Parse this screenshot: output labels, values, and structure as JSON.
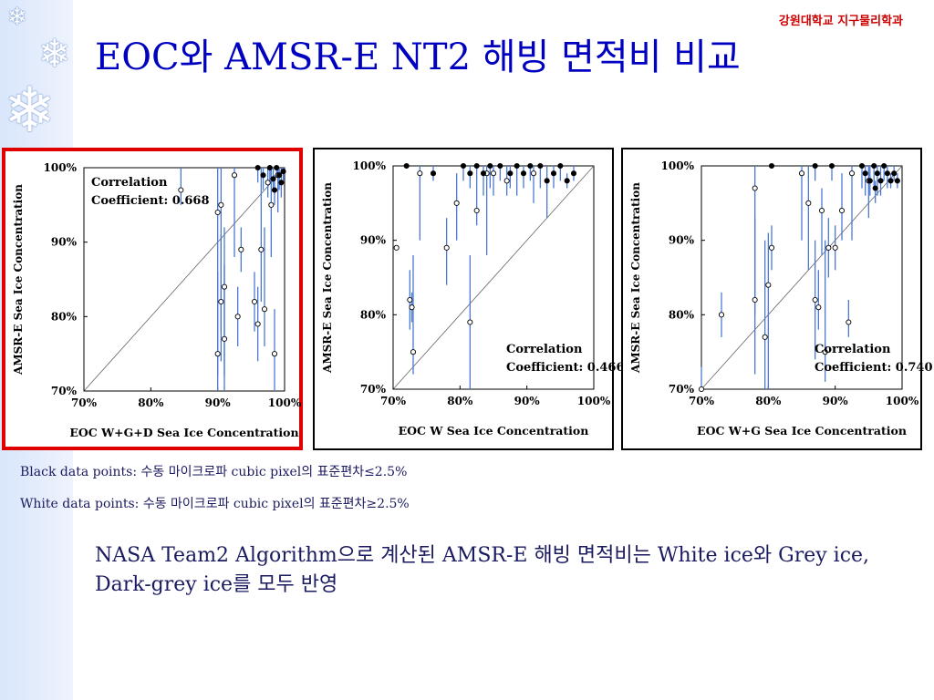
{
  "header": {
    "department": "강원대학교 지구물리학과",
    "title": "EOC와 AMSR-E NT2 해빙 면적비 비교"
  },
  "decor": {
    "icon": "snowflake-icon"
  },
  "legend": {
    "black": "Black data points: 수동 마이크로파 cubic pixel의 표준편차≤2.5%",
    "white": "White data points: 수동 마이크로파 cubic pixel의 표준편차≥2.5%"
  },
  "body_text": "NASA Team2 Algorithm으로 계산된 AMSR-E 해빙 면적비는 White ice와 Grey ice, Dark-grey ice를 모두 반영",
  "colors": {
    "title": "#0000c0",
    "department": "#cc0000",
    "highlight": "#e00000",
    "error_bar": "#4a78d4",
    "sidebar": "#dce8fb"
  },
  "chart_data": [
    {
      "type": "scatter",
      "xlabel": "EOC W+G+D Sea Ice Concentration",
      "ylabel": "AMSR-E Sea Ice Concentration",
      "xlim": [
        70,
        100
      ],
      "ylim": [
        70,
        100
      ],
      "xticks": [
        "70%",
        "80%",
        "90%",
        "100%"
      ],
      "yticks": [
        "70%",
        "80%",
        "90%",
        "100%"
      ],
      "annotation": [
        "Correlation",
        "Coefficient: 0.668"
      ],
      "annotation_position": "top-left",
      "highlighted": true,
      "points": [
        {
          "x": 84.5,
          "y": 97,
          "lo": 95,
          "hi": 100,
          "black": false
        },
        {
          "x": 90,
          "y": 94,
          "lo": 72,
          "hi": 100,
          "black": false
        },
        {
          "x": 90.5,
          "y": 95,
          "lo": 78,
          "hi": 100,
          "black": false
        },
        {
          "x": 90.5,
          "y": 82,
          "lo": 74,
          "hi": 91,
          "black": false
        },
        {
          "x": 91,
          "y": 84,
          "lo": 70,
          "hi": 92,
          "black": false
        },
        {
          "x": 90,
          "y": 75,
          "lo": 70,
          "hi": 86,
          "black": false
        },
        {
          "x": 91,
          "y": 77,
          "lo": 72,
          "hi": 87,
          "black": false
        },
        {
          "x": 92.5,
          "y": 99,
          "lo": 88,
          "hi": 100,
          "black": false
        },
        {
          "x": 93,
          "y": 80,
          "lo": 76,
          "hi": 84,
          "black": false
        },
        {
          "x": 93.5,
          "y": 89,
          "lo": 86,
          "hi": 92,
          "black": false
        },
        {
          "x": 95.5,
          "y": 82,
          "lo": 78,
          "hi": 86,
          "black": false
        },
        {
          "x": 96,
          "y": 79,
          "lo": 74,
          "hi": 84,
          "black": false
        },
        {
          "x": 96.5,
          "y": 89,
          "lo": 82,
          "hi": 100,
          "black": false
        },
        {
          "x": 97,
          "y": 81,
          "lo": 76,
          "hi": 92,
          "black": false
        },
        {
          "x": 98,
          "y": 95,
          "lo": 88,
          "hi": 100,
          "black": false
        },
        {
          "x": 98.5,
          "y": 75,
          "lo": 70,
          "hi": 81,
          "black": false
        },
        {
          "x": 99,
          "y": 99,
          "lo": 94,
          "hi": 100,
          "black": false
        },
        {
          "x": 97.5,
          "y": 98,
          "lo": 96,
          "hi": 100,
          "black": false
        },
        {
          "x": 96,
          "y": 100,
          "lo": 98,
          "hi": 100,
          "black": true
        },
        {
          "x": 96.8,
          "y": 99,
          "lo": 97,
          "hi": 100,
          "black": true
        },
        {
          "x": 97.8,
          "y": 100,
          "lo": 98,
          "hi": 100,
          "black": true
        },
        {
          "x": 98.3,
          "y": 98.5,
          "lo": 97,
          "hi": 100,
          "black": true
        },
        {
          "x": 98.8,
          "y": 100,
          "lo": 99,
          "hi": 100,
          "black": true
        },
        {
          "x": 99.2,
          "y": 99,
          "lo": 97,
          "hi": 100,
          "black": true
        },
        {
          "x": 99.5,
          "y": 98,
          "lo": 96,
          "hi": 100,
          "black": true
        },
        {
          "x": 99.8,
          "y": 99.5,
          "lo": 98,
          "hi": 100,
          "black": true
        },
        {
          "x": 98.5,
          "y": 97,
          "lo": 95,
          "hi": 99,
          "black": true
        }
      ]
    },
    {
      "type": "scatter",
      "xlabel": "EOC W Sea Ice Concentration",
      "ylabel": "AMSR-E Sea Ice Concentration",
      "xlim": [
        70,
        100
      ],
      "ylim": [
        70,
        100
      ],
      "xticks": [
        "70%",
        "80%",
        "90%",
        "100%"
      ],
      "yticks": [
        "70%",
        "80%",
        "90%",
        "100%"
      ],
      "annotation": [
        "Correlation",
        "Coefficient: 0.466"
      ],
      "annotation_position": "bottom-right",
      "highlighted": false,
      "points": [
        {
          "x": 70.5,
          "y": 89,
          "lo": 89,
          "hi": 89,
          "black": false
        },
        {
          "x": 72.5,
          "y": 82,
          "lo": 78,
          "hi": 86,
          "black": false
        },
        {
          "x": 72.8,
          "y": 81,
          "lo": 79,
          "hi": 83,
          "black": false
        },
        {
          "x": 73,
          "y": 75,
          "lo": 72,
          "hi": 88,
          "black": false
        },
        {
          "x": 74,
          "y": 99,
          "lo": 90,
          "hi": 100,
          "black": false
        },
        {
          "x": 78,
          "y": 89,
          "lo": 84,
          "hi": 93,
          "black": false
        },
        {
          "x": 79.5,
          "y": 95,
          "lo": 90,
          "hi": 99,
          "black": false
        },
        {
          "x": 81.5,
          "y": 79,
          "lo": 70,
          "hi": 88,
          "black": false
        },
        {
          "x": 82.5,
          "y": 94,
          "lo": 92,
          "hi": 96,
          "black": false
        },
        {
          "x": 84,
          "y": 99,
          "lo": 88,
          "hi": 100,
          "black": false
        },
        {
          "x": 85,
          "y": 99,
          "lo": 96,
          "hi": 100,
          "black": false
        },
        {
          "x": 87,
          "y": 98,
          "lo": 96,
          "hi": 100,
          "black": false
        },
        {
          "x": 91,
          "y": 99,
          "lo": 95,
          "hi": 100,
          "black": false
        },
        {
          "x": 72,
          "y": 100,
          "lo": 100,
          "hi": 100,
          "black": true
        },
        {
          "x": 76,
          "y": 99,
          "lo": 98,
          "hi": 100,
          "black": true
        },
        {
          "x": 80.5,
          "y": 100,
          "lo": 98,
          "hi": 100,
          "black": true
        },
        {
          "x": 81.5,
          "y": 99,
          "lo": 97,
          "hi": 100,
          "black": true
        },
        {
          "x": 82.5,
          "y": 100,
          "lo": 96,
          "hi": 100,
          "black": true
        },
        {
          "x": 83.5,
          "y": 99,
          "lo": 96,
          "hi": 100,
          "black": true
        },
        {
          "x": 84.5,
          "y": 100,
          "lo": 97,
          "hi": 100,
          "black": true
        },
        {
          "x": 86,
          "y": 100,
          "lo": 98,
          "hi": 100,
          "black": true
        },
        {
          "x": 87.5,
          "y": 99,
          "lo": 97,
          "hi": 100,
          "black": true
        },
        {
          "x": 88.5,
          "y": 100,
          "lo": 96,
          "hi": 100,
          "black": true
        },
        {
          "x": 89.5,
          "y": 99,
          "lo": 97,
          "hi": 100,
          "black": true
        },
        {
          "x": 90.5,
          "y": 100,
          "lo": 98,
          "hi": 100,
          "black": true
        },
        {
          "x": 92,
          "y": 100,
          "lo": 97,
          "hi": 100,
          "black": true
        },
        {
          "x": 93,
          "y": 98,
          "lo": 93,
          "hi": 100,
          "black": true
        },
        {
          "x": 94,
          "y": 99,
          "lo": 97,
          "hi": 100,
          "black": true
        },
        {
          "x": 95,
          "y": 100,
          "lo": 98,
          "hi": 100,
          "black": true
        },
        {
          "x": 96,
          "y": 98,
          "lo": 97,
          "hi": 99,
          "black": true
        },
        {
          "x": 97,
          "y": 99,
          "lo": 98,
          "hi": 100,
          "black": true
        }
      ]
    },
    {
      "type": "scatter",
      "xlabel": "EOC W+G Sea Ice Concentration",
      "ylabel": "AMSR-E Sea Ice Concentration",
      "xlim": [
        70,
        100
      ],
      "ylim": [
        70,
        100
      ],
      "xticks": [
        "70%",
        "80%",
        "90%",
        "100%"
      ],
      "yticks": [
        "70%",
        "80%",
        "90%",
        "100%"
      ],
      "annotation": [
        "Correlation",
        "Coefficient: 0.740"
      ],
      "annotation_position": "bottom-right",
      "highlighted": false,
      "points": [
        {
          "x": 70,
          "y": 70,
          "lo": 70,
          "hi": 73,
          "black": false
        },
        {
          "x": 73,
          "y": 80,
          "lo": 77,
          "hi": 83,
          "black": false
        },
        {
          "x": 78,
          "y": 97,
          "lo": 80,
          "hi": 100,
          "black": false
        },
        {
          "x": 78,
          "y": 82,
          "lo": 72,
          "hi": 93,
          "black": false
        },
        {
          "x": 79.5,
          "y": 77,
          "lo": 70,
          "hi": 90,
          "black": false
        },
        {
          "x": 80,
          "y": 84,
          "lo": 70,
          "hi": 91,
          "black": false
        },
        {
          "x": 80.5,
          "y": 89,
          "lo": 86,
          "hi": 92,
          "black": false
        },
        {
          "x": 85,
          "y": 99,
          "lo": 90,
          "hi": 100,
          "black": false
        },
        {
          "x": 86,
          "y": 95,
          "lo": 86,
          "hi": 100,
          "black": false
        },
        {
          "x": 87,
          "y": 82,
          "lo": 74,
          "hi": 90,
          "black": false
        },
        {
          "x": 87.5,
          "y": 81,
          "lo": 78,
          "hi": 86,
          "black": false
        },
        {
          "x": 88,
          "y": 94,
          "lo": 88,
          "hi": 97,
          "black": false
        },
        {
          "x": 88.5,
          "y": 75,
          "lo": 71,
          "hi": 90,
          "black": false
        },
        {
          "x": 89,
          "y": 89,
          "lo": 85,
          "hi": 93,
          "black": false
        },
        {
          "x": 90,
          "y": 89,
          "lo": 86,
          "hi": 92,
          "black": false
        },
        {
          "x": 91,
          "y": 94,
          "lo": 90,
          "hi": 99,
          "black": false
        },
        {
          "x": 92,
          "y": 79,
          "lo": 77,
          "hi": 82,
          "black": false
        },
        {
          "x": 92.5,
          "y": 99,
          "lo": 90,
          "hi": 100,
          "black": false
        },
        {
          "x": 95,
          "y": 98,
          "lo": 93,
          "hi": 100,
          "black": false
        },
        {
          "x": 80.5,
          "y": 100,
          "lo": 100,
          "hi": 100,
          "black": true
        },
        {
          "x": 87,
          "y": 100,
          "lo": 98,
          "hi": 100,
          "black": true
        },
        {
          "x": 89.5,
          "y": 100,
          "lo": 98,
          "hi": 100,
          "black": true
        },
        {
          "x": 94,
          "y": 100,
          "lo": 97,
          "hi": 100,
          "black": true
        },
        {
          "x": 94.5,
          "y": 99,
          "lo": 96,
          "hi": 100,
          "black": true
        },
        {
          "x": 95.2,
          "y": 98,
          "lo": 96,
          "hi": 100,
          "black": true
        },
        {
          "x": 95.8,
          "y": 100,
          "lo": 97,
          "hi": 100,
          "black": true
        },
        {
          "x": 96.3,
          "y": 99,
          "lo": 96,
          "hi": 100,
          "black": true
        },
        {
          "x": 96.8,
          "y": 98,
          "lo": 96,
          "hi": 100,
          "black": true
        },
        {
          "x": 97.3,
          "y": 100,
          "lo": 98,
          "hi": 100,
          "black": true
        },
        {
          "x": 97.8,
          "y": 99,
          "lo": 97,
          "hi": 100,
          "black": true
        },
        {
          "x": 98.3,
          "y": 98,
          "lo": 97,
          "hi": 99,
          "black": true
        },
        {
          "x": 98.8,
          "y": 99,
          "lo": 98,
          "hi": 100,
          "black": true
        },
        {
          "x": 99.3,
          "y": 98,
          "lo": 97,
          "hi": 99,
          "black": true
        },
        {
          "x": 96,
          "y": 97,
          "lo": 95,
          "hi": 98,
          "black": true
        }
      ]
    }
  ]
}
